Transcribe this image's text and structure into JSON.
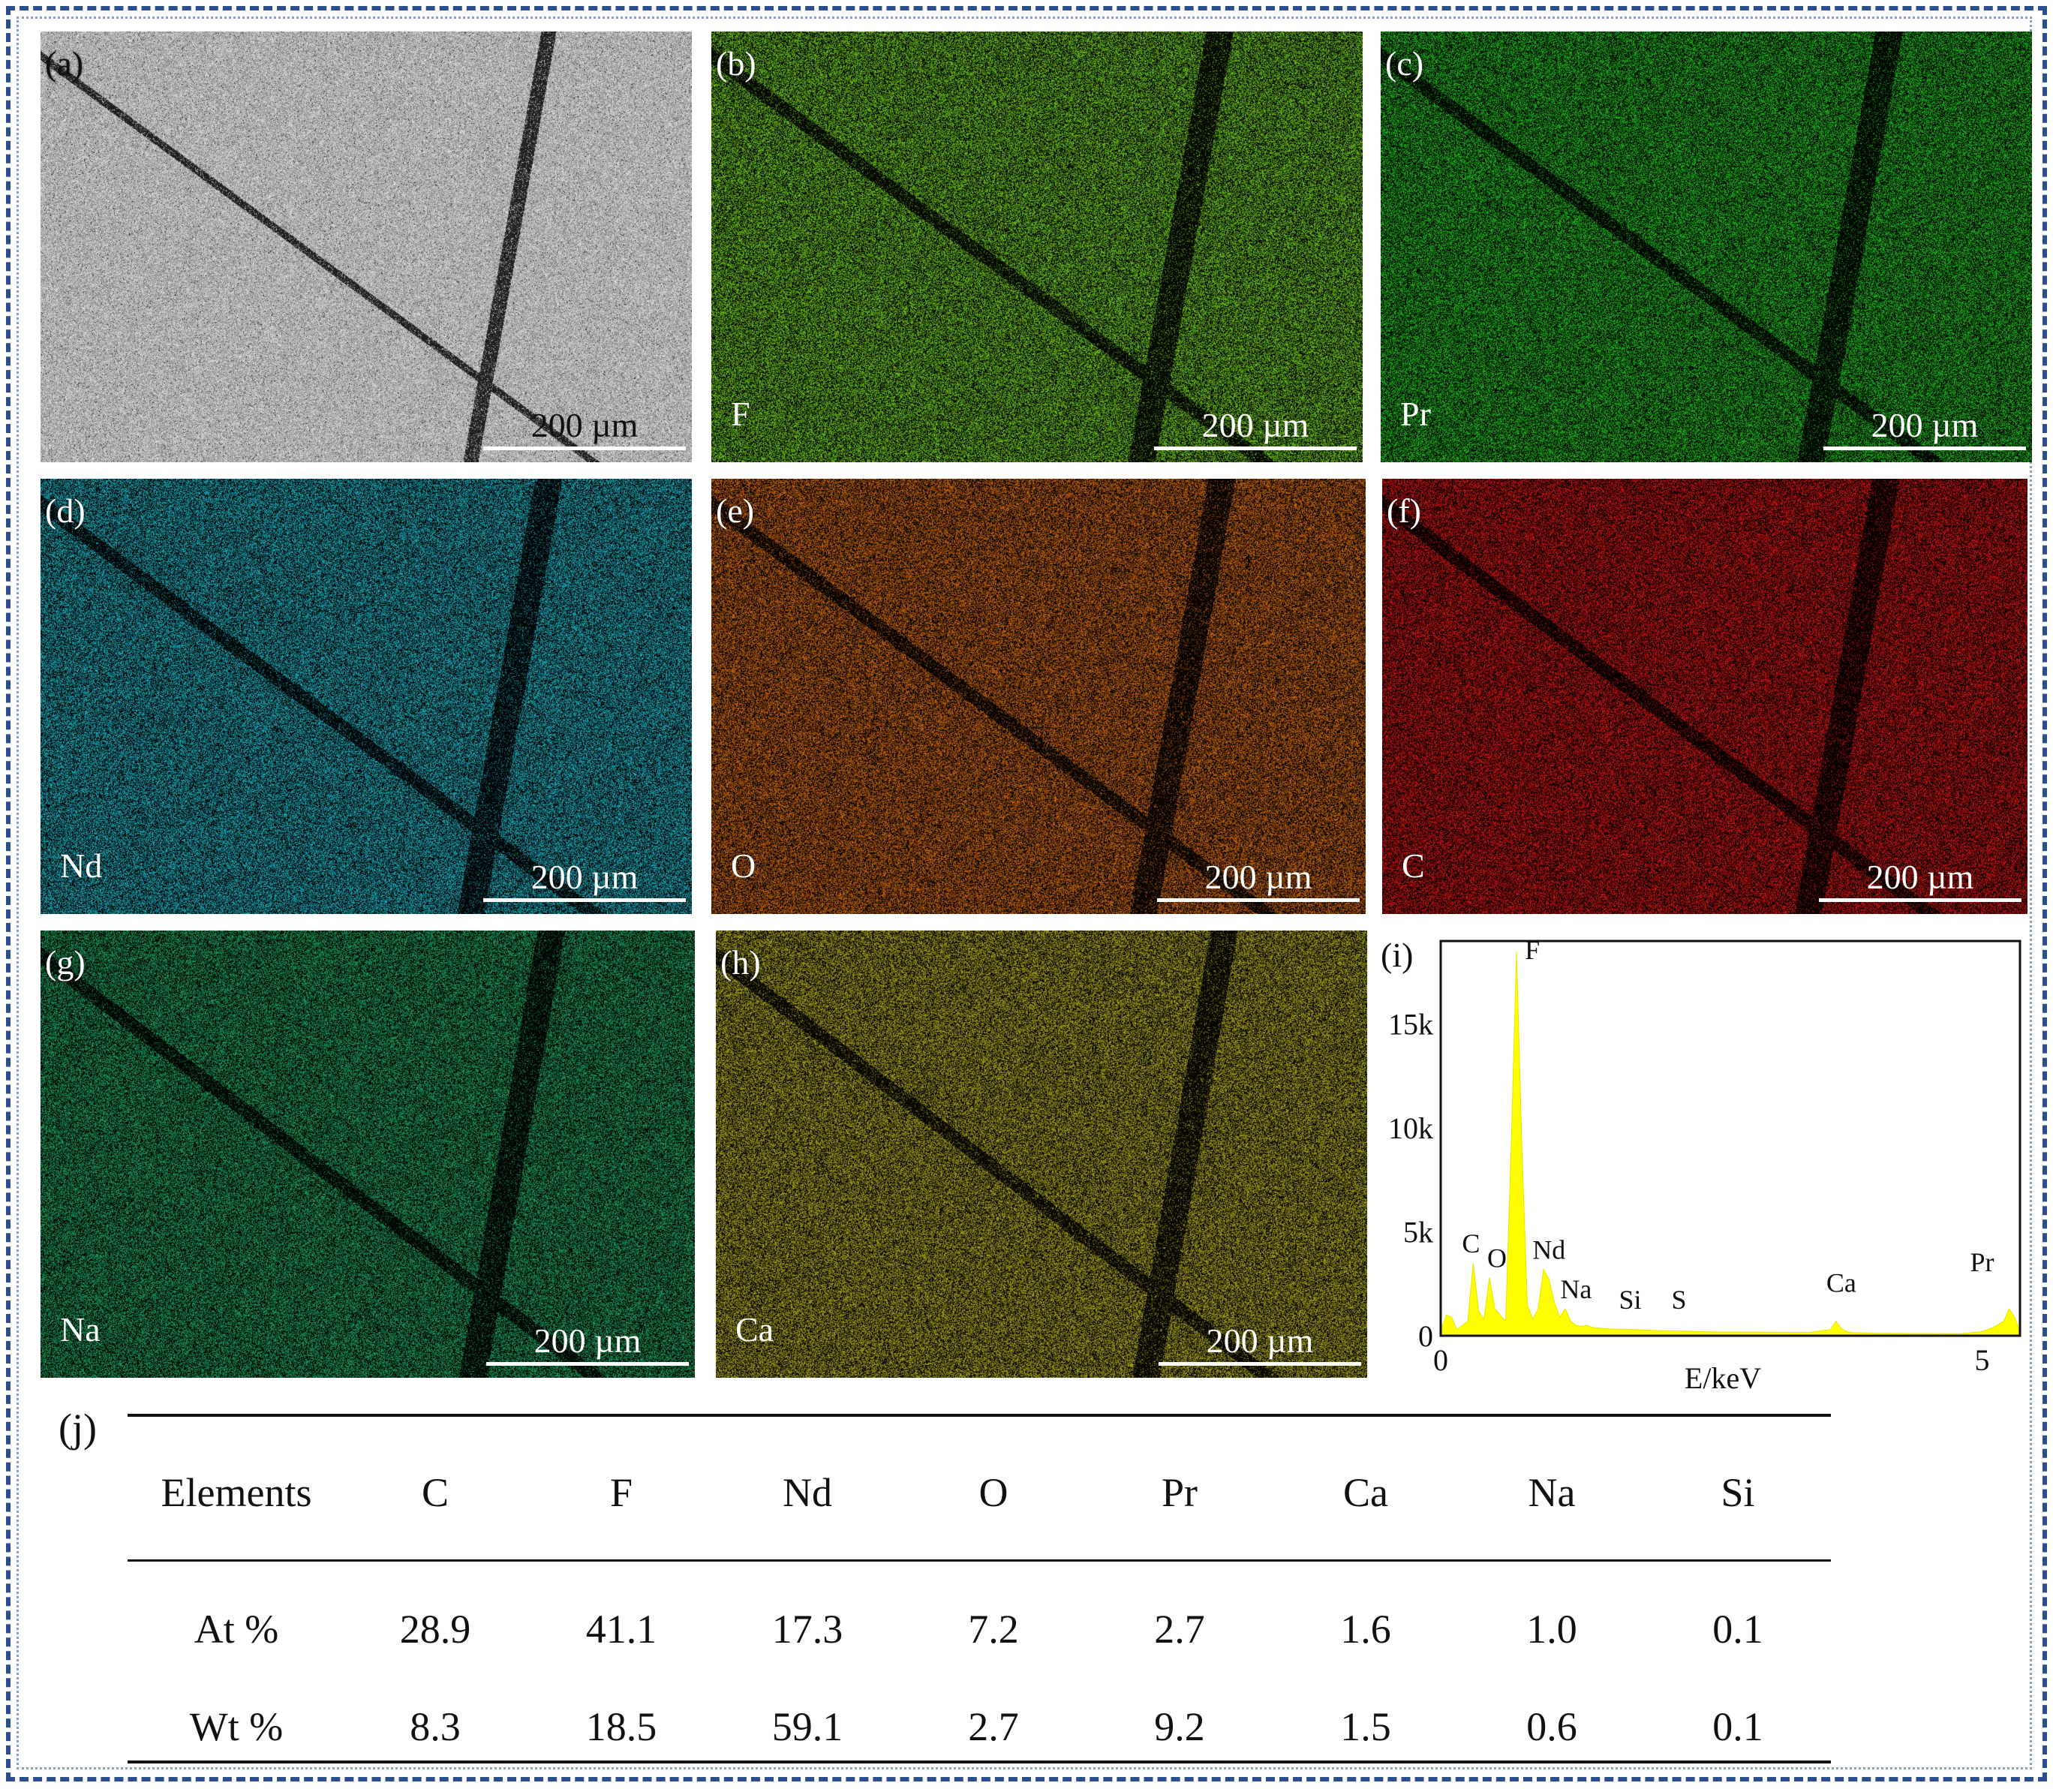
{
  "panels": [
    {
      "id": "a",
      "label": "(a)",
      "element": "",
      "scale": "200 µm",
      "color": "#9a9a9a",
      "type": "sem"
    },
    {
      "id": "b",
      "label": "(b)",
      "element": "F",
      "scale": "200 µm",
      "color": "#6cc21c",
      "type": "map"
    },
    {
      "id": "c",
      "label": "(c)",
      "element": "Pr",
      "scale": "200 µm",
      "color": "#1fb31f",
      "type": "map"
    },
    {
      "id": "d",
      "label": "(d)",
      "element": "Nd",
      "scale": "200 µm",
      "color": "#1aa9b8",
      "type": "map"
    },
    {
      "id": "e",
      "label": "(e)",
      "element": "O",
      "scale": "200 µm",
      "color": "#c8650f",
      "type": "map"
    },
    {
      "id": "f",
      "label": "(f)",
      "element": "C",
      "scale": "200 µm",
      "color": "#c81414",
      "type": "map"
    },
    {
      "id": "g",
      "label": "(g)",
      "element": "Na",
      "scale": "200 µm",
      "color": "#1c9b58",
      "type": "map"
    },
    {
      "id": "h",
      "label": "(h)",
      "element": "Ca",
      "scale": "200 µm",
      "color": "#a8a21a",
      "type": "map"
    }
  ],
  "spectrum": {
    "label": "(i)",
    "xlabel": "E/keV",
    "x_ticks": [
      "0",
      "5"
    ],
    "y_ticks": [
      "0",
      "5k",
      "10k",
      "15k"
    ],
    "peak_color": "#ffff00",
    "chart_data": {
      "type": "area",
      "x": [
        0.0,
        0.05,
        0.1,
        0.15,
        0.2,
        0.25,
        0.3,
        0.35,
        0.4,
        0.45,
        0.5,
        0.55,
        0.6,
        0.65,
        0.7,
        0.75,
        0.8,
        0.85,
        0.9,
        0.95,
        1.0,
        1.05,
        1.1,
        1.15,
        1.2,
        1.25,
        1.3,
        1.35,
        1.4,
        1.5,
        1.6,
        1.8,
        2.0,
        2.2,
        2.4,
        2.6,
        3.0,
        3.4,
        3.6,
        3.65,
        3.7,
        3.75,
        3.8,
        4.0,
        4.4,
        4.8,
        5.0,
        5.1,
        5.2,
        5.25,
        5.3,
        5.35
      ],
      "y": [
        200,
        1000,
        900,
        300,
        500,
        700,
        3500,
        1200,
        800,
        2800,
        1300,
        1000,
        700,
        9000,
        18500,
        9000,
        1500,
        800,
        1300,
        3200,
        2700,
        1600,
        900,
        1300,
        700,
        500,
        450,
        500,
        400,
        350,
        320,
        300,
        250,
        230,
        200,
        180,
        170,
        160,
        300,
        700,
        350,
        200,
        150,
        120,
        110,
        100,
        200,
        400,
        700,
        1300,
        900,
        200
      ],
      "xlim": [
        0,
        5.35
      ],
      "ylim": [
        0,
        19000
      ],
      "peaks": [
        {
          "name": "C",
          "x": 0.28,
          "y": 3500
        },
        {
          "name": "O",
          "x": 0.52,
          "y": 2800
        },
        {
          "name": "F",
          "x": 0.68,
          "y": 18500
        },
        {
          "name": "Nd",
          "x": 1.0,
          "y": 3200
        },
        {
          "name": "Na",
          "x": 1.25,
          "y": 1300
        },
        {
          "name": "Si",
          "x": 1.75,
          "y": 800
        },
        {
          "name": "S",
          "x": 2.2,
          "y": 800
        },
        {
          "name": "Ca",
          "x": 3.7,
          "y": 1600
        },
        {
          "name": "Pr",
          "x": 5.0,
          "y": 2600
        }
      ]
    }
  },
  "table": {
    "label": "(j)",
    "header": [
      "Elements",
      "C",
      "F",
      "Nd",
      "O",
      "Pr",
      "Ca",
      "Na",
      "Si"
    ],
    "rows": [
      [
        "At %",
        "28.9",
        "41.1",
        "17.3",
        "7.2",
        "2.7",
        "1.6",
        "1.0",
        "0.1"
      ],
      [
        "Wt %",
        "8.3",
        "18.5",
        "59.1",
        "2.7",
        "9.2",
        "1.5",
        "0.6",
        "0.1"
      ]
    ]
  }
}
